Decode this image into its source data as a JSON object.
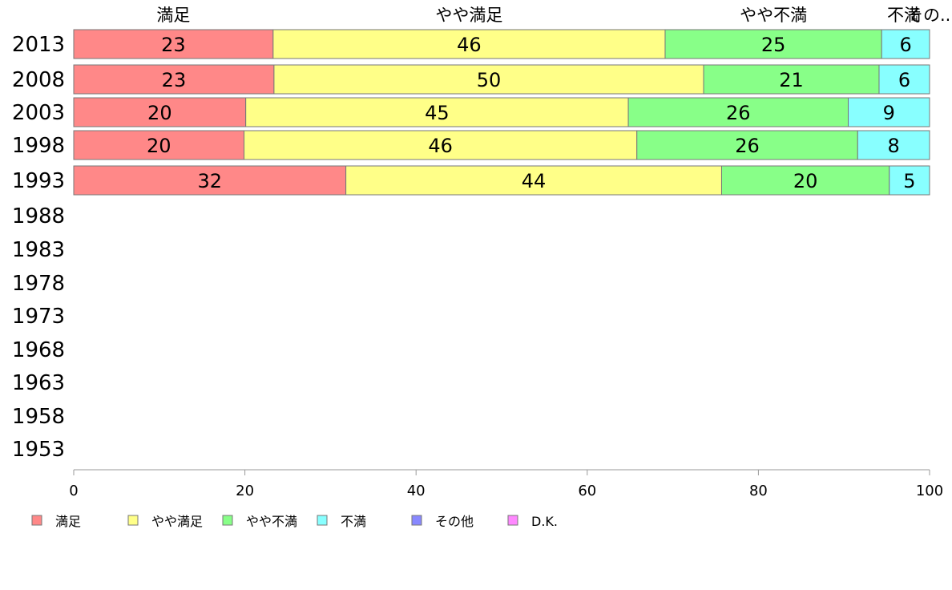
{
  "chart_data": {
    "type": "bar",
    "orientation": "horizontal",
    "stacked": true,
    "categories": [
      "2013",
      "2008",
      "2003",
      "1998",
      "1993",
      "1988",
      "1983",
      "1978",
      "1973",
      "1968",
      "1963",
      "1958",
      "1953"
    ],
    "series": [
      {
        "name": "満足",
        "values": [
          23.3,
          23.4,
          20.1,
          19.9,
          31.8,
          null,
          null,
          null,
          null,
          null,
          null,
          null,
          null
        ],
        "color": "#ff8888"
      },
      {
        "name": "やや満足",
        "values": [
          45.8,
          50.2,
          44.7,
          45.9,
          43.9,
          null,
          null,
          null,
          null,
          null,
          null,
          null,
          null
        ],
        "color": "#ffff88"
      },
      {
        "name": "やや不満",
        "values": [
          25.3,
          20.5,
          25.7,
          25.8,
          19.6,
          null,
          null,
          null,
          null,
          null,
          null,
          null,
          null
        ],
        "color": "#88ff88"
      },
      {
        "name": "不満",
        "values": [
          5.6,
          5.9,
          9.5,
          8.4,
          4.7,
          null,
          null,
          null,
          null,
          null,
          null,
          null,
          null
        ],
        "color": "#88ffff"
      },
      {
        "name": "その他",
        "values": [
          0,
          0,
          0,
          0,
          0,
          null,
          null,
          null,
          null,
          null,
          null,
          null,
          null
        ],
        "color": "#8888ff"
      },
      {
        "name": "D.K.",
        "values": [
          0,
          0,
          0,
          0,
          0,
          null,
          null,
          null,
          null,
          null,
          null,
          null,
          null
        ],
        "color": "#ff88ff"
      }
    ],
    "data_labels": [
      [
        "23",
        "46",
        "25",
        "6"
      ],
      [
        "23",
        "50",
        "21",
        "6"
      ],
      [
        "20",
        "45",
        "26",
        "9"
      ],
      [
        "20",
        "46",
        "26",
        "8"
      ],
      [
        "32",
        "44",
        "20",
        "5"
      ]
    ],
    "top_labels": [
      "満足",
      "やや満足",
      "やや不満",
      "不満",
      "その..."
    ],
    "xlim": [
      0,
      100
    ],
    "xticks": [
      "0",
      "20",
      "40",
      "60",
      "80",
      "100"
    ],
    "legend_position": "bottom",
    "grid": false
  }
}
